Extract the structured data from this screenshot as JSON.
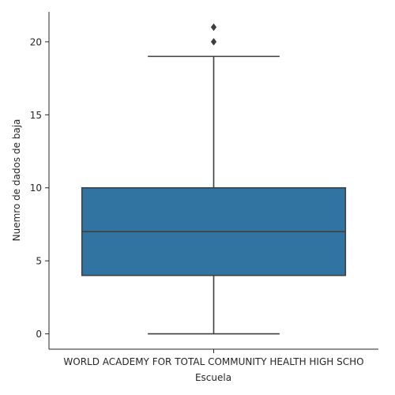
{
  "chart_data": {
    "type": "box",
    "title": "",
    "xlabel": "Escuela",
    "ylabel": "Nuemro de dados de baja",
    "categories": [
      "WORLD ACADEMY FOR TOTAL COMMUNITY HEALTH HIGH SCHO"
    ],
    "boxes": [
      {
        "category": "WORLD ACADEMY FOR TOTAL COMMUNITY HEALTH HIGH SCHO",
        "whisker_low": 0,
        "q1": 4,
        "median": 7,
        "q3": 10,
        "whisker_high": 19,
        "outliers": [
          20,
          20,
          21,
          21
        ]
      }
    ],
    "ylim": [
      -1.05,
      22.05
    ],
    "yticks": [
      0,
      5,
      10,
      15,
      20
    ],
    "grid": false,
    "colors": {
      "box": "#3274a1",
      "lines": "#3f3f3f",
      "axis": "#262626"
    }
  }
}
